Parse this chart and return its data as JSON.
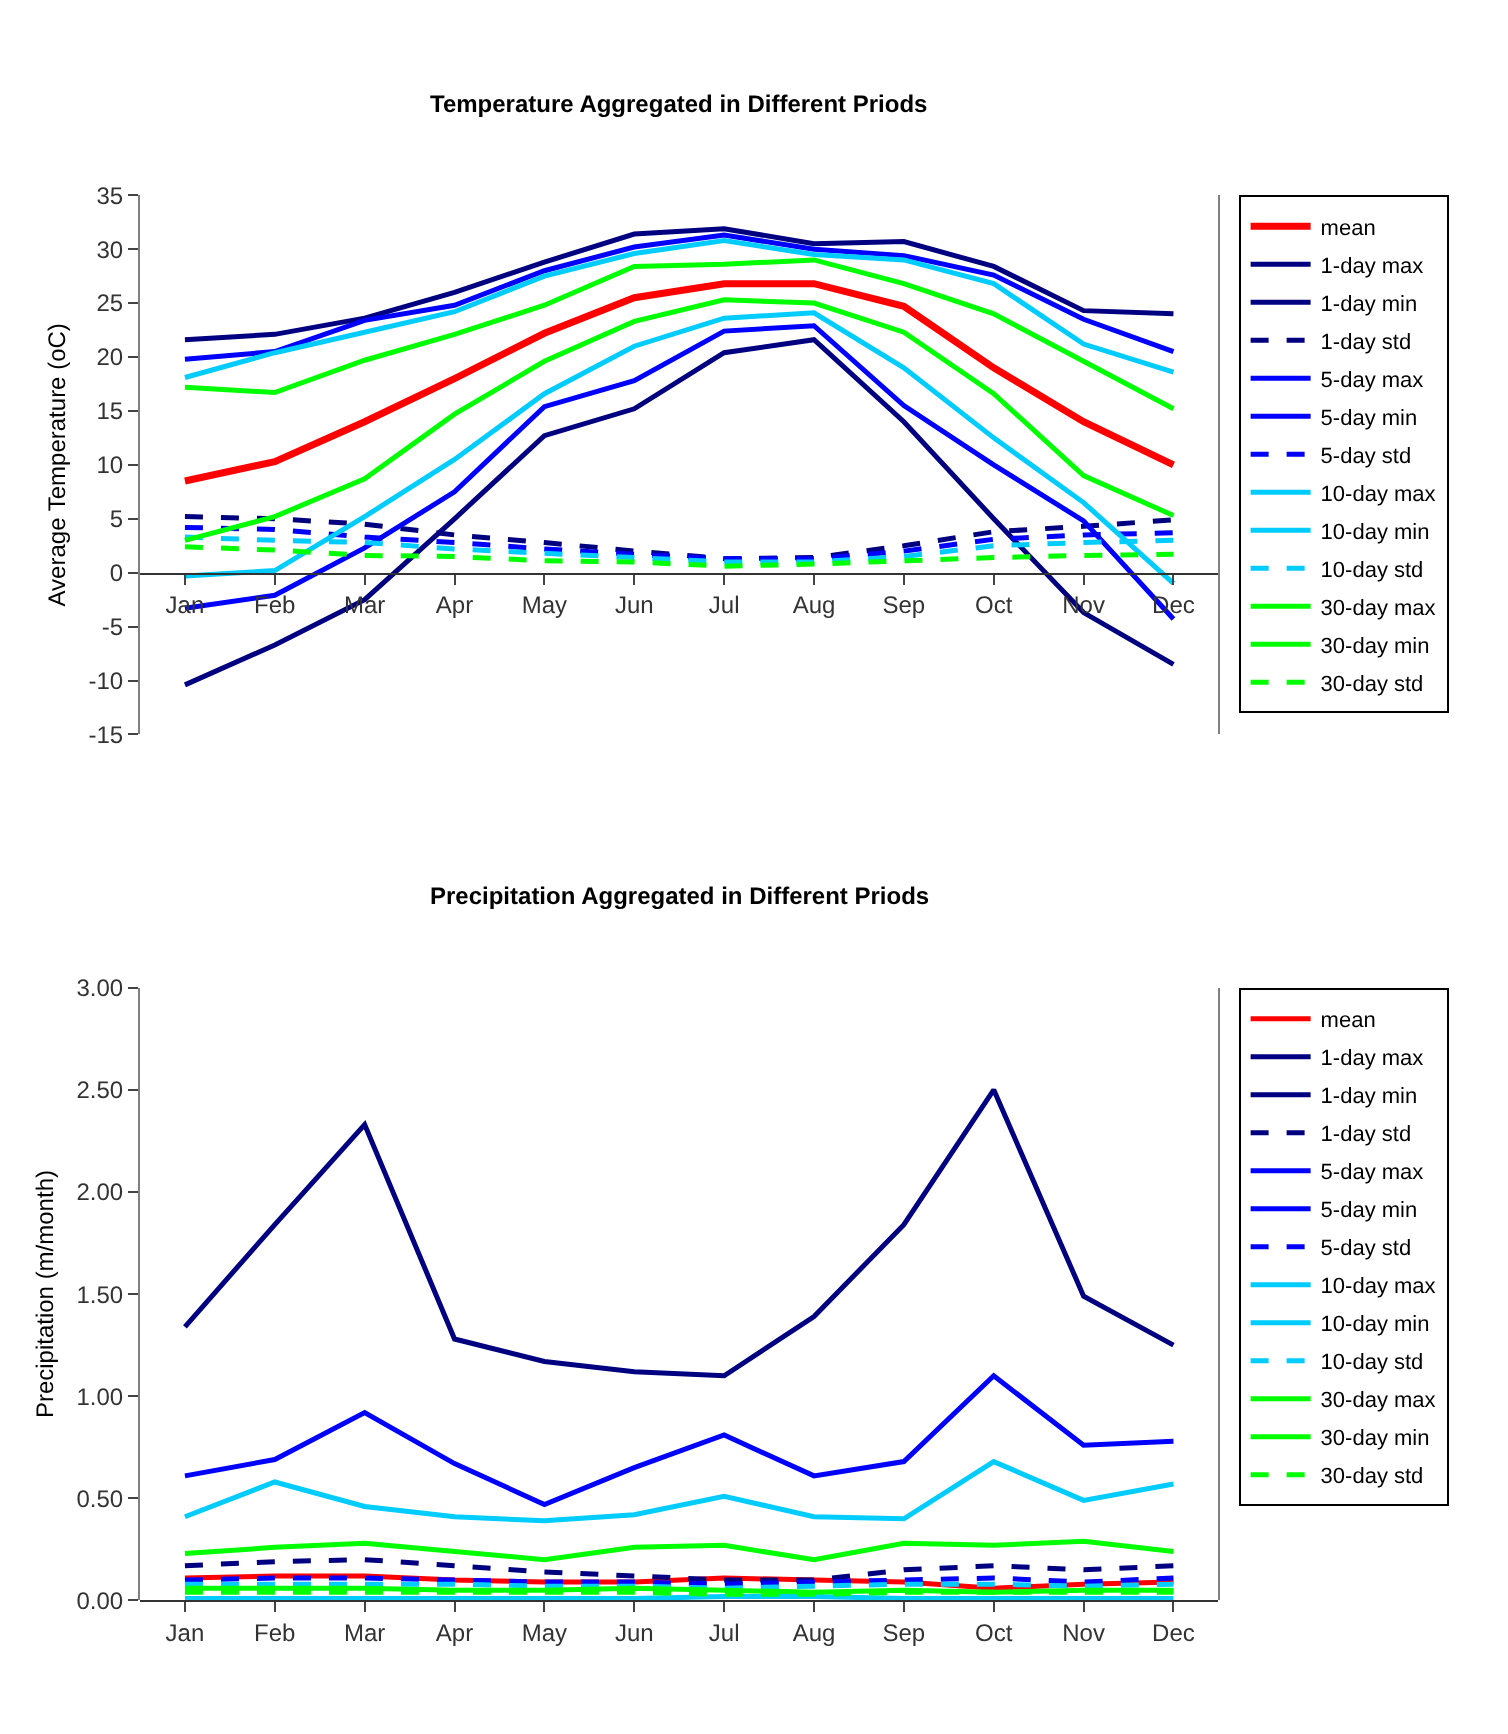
{
  "chart_data": [
    {
      "type": "line",
      "title": "Temperature Aggregated in Different Priods",
      "ylabel": "Average Temperature (oC)",
      "categories": [
        "Jan",
        "Feb",
        "Mar",
        "Apr",
        "May",
        "Jun",
        "Jul",
        "Aug",
        "Sep",
        "Oct",
        "Nov",
        "Dec"
      ],
      "ylim": [
        -15,
        35
      ],
      "yticks": [
        -15,
        -10,
        -5,
        0,
        5,
        10,
        15,
        20,
        25,
        30,
        35
      ],
      "legend": "right",
      "series": [
        {
          "name": "mean",
          "color": "#ff0000",
          "line_style": "solid",
          "values": [
            8.5,
            10.3,
            14,
            18,
            22.2,
            25.5,
            26.8,
            26.8,
            24.7,
            19,
            14,
            10
          ]
        },
        {
          "name": "1-day max",
          "color": "#000080",
          "line_style": "solid",
          "values": [
            21.6,
            22.1,
            23.6,
            26,
            28.8,
            31.4,
            31.9,
            30.5,
            30.7,
            28.4,
            24.3,
            24
          ]
        },
        {
          "name": "1-day min",
          "color": "#000080",
          "line_style": "solid",
          "values": [
            -10.4,
            -6.7,
            -2.5,
            5,
            12.7,
            15.2,
            20.4,
            21.6,
            14,
            5,
            -3.7,
            -8.5
          ]
        },
        {
          "name": "1-day std",
          "color": "#000080",
          "line_style": "dashed",
          "values": [
            5.2,
            5,
            4.5,
            3.5,
            2.8,
            2,
            1.3,
            1.4,
            2.5,
            3.8,
            4.3,
            4.9
          ]
        },
        {
          "name": "5-day max",
          "color": "#0000ff",
          "line_style": "solid",
          "values": [
            19.8,
            20.5,
            23.4,
            24.8,
            28,
            30.2,
            31.3,
            30,
            29.4,
            27.6,
            23.5,
            20.5
          ]
        },
        {
          "name": "5-day min",
          "color": "#0000ff",
          "line_style": "solid",
          "values": [
            -3.3,
            -2.1,
            2.3,
            7.5,
            15.4,
            17.8,
            22.4,
            22.9,
            15.5,
            10,
            4.8,
            -4.3
          ]
        },
        {
          "name": "5-day std",
          "color": "#0000ff",
          "line_style": "dashed",
          "values": [
            4.2,
            4,
            3.3,
            2.8,
            2.2,
            1.7,
            1.3,
            1.3,
            2,
            3.1,
            3.5,
            3.7
          ]
        },
        {
          "name": "10-day max",
          "color": "#00ccff",
          "line_style": "solid",
          "values": [
            18.1,
            20.4,
            22.3,
            24.2,
            27.5,
            29.6,
            30.8,
            29.5,
            29,
            26.8,
            21.2,
            18.6
          ]
        },
        {
          "name": "10-day min",
          "color": "#00ccff",
          "line_style": "solid",
          "values": [
            -0.3,
            0.2,
            5.2,
            10.5,
            16.6,
            21,
            23.6,
            24.1,
            19,
            12.5,
            6.5,
            -1
          ]
        },
        {
          "name": "10-day std",
          "color": "#00ccff",
          "line_style": "dashed",
          "values": [
            3.3,
            3,
            2.8,
            2.2,
            1.8,
            1.4,
            1,
            1,
            1.5,
            2.5,
            2.8,
            3
          ]
        },
        {
          "name": "30-day max",
          "color": "#00ff00",
          "line_style": "solid",
          "values": [
            17.2,
            16.7,
            19.7,
            22.1,
            24.8,
            28.4,
            28.6,
            29,
            26.8,
            24,
            19.6,
            15.2
          ]
        },
        {
          "name": "30-day min",
          "color": "#00ff00",
          "line_style": "solid",
          "values": [
            3,
            5.2,
            8.7,
            14.7,
            19.6,
            23.3,
            25.3,
            25,
            22.3,
            16.6,
            9,
            5.3
          ]
        },
        {
          "name": "30-day std",
          "color": "#00ff00",
          "line_style": "dashed",
          "values": [
            2.4,
            2.1,
            1.6,
            1.5,
            1.1,
            1,
            0.6,
            0.8,
            1.1,
            1.4,
            1.6,
            1.7
          ]
        }
      ]
    },
    {
      "type": "line",
      "title": "Precipitation Aggregated in Different Priods",
      "ylabel": "Precipitation (m/month)",
      "categories": [
        "Jan",
        "Feb",
        "Mar",
        "Apr",
        "May",
        "Jun",
        "Jul",
        "Aug",
        "Sep",
        "Oct",
        "Nov",
        "Dec"
      ],
      "ylim": [
        0,
        3
      ],
      "yticks": [
        {
          "value": 0,
          "label": "0.00"
        },
        {
          "value": 0.5,
          "label": "0.50"
        },
        {
          "value": 1,
          "label": "1.00"
        },
        {
          "value": 1.5,
          "label": "1.50"
        },
        {
          "value": 2,
          "label": "2.00"
        },
        {
          "value": 2.5,
          "label": "2.50"
        },
        {
          "value": 3,
          "label": "3.00"
        }
      ],
      "legend": "right",
      "series": [
        {
          "name": "mean",
          "color": "#ff0000",
          "line_style": "solid",
          "values": [
            0.11,
            0.12,
            0.12,
            0.1,
            0.09,
            0.09,
            0.11,
            0.1,
            0.09,
            0.06,
            0.08,
            0.09
          ]
        },
        {
          "name": "1-day max",
          "color": "#000080",
          "line_style": "solid",
          "values": [
            1.34,
            1.84,
            2.33,
            1.28,
            1.17,
            1.12,
            1.1,
            1.39,
            1.84,
            2.5,
            1.49,
            1.25
          ]
        },
        {
          "name": "1-day min",
          "color": "#000080",
          "line_style": "solid",
          "values": [
            null,
            null,
            null,
            null,
            null,
            null,
            null,
            null,
            null,
            null,
            null,
            null
          ]
        },
        {
          "name": "1-day std",
          "color": "#000080",
          "line_style": "dashed",
          "values": [
            0.17,
            0.19,
            0.2,
            0.17,
            0.14,
            0.12,
            0.1,
            0.1,
            0.15,
            0.17,
            0.15,
            0.17
          ]
        },
        {
          "name": "5-day max",
          "color": "#0000ff",
          "line_style": "solid",
          "values": [
            0.61,
            0.69,
            0.92,
            0.67,
            0.47,
            0.65,
            0.81,
            0.61,
            0.68,
            1.1,
            0.76,
            0.78
          ]
        },
        {
          "name": "5-day min",
          "color": "#0000ff",
          "line_style": "solid",
          "values": [
            null,
            null,
            null,
            null,
            null,
            null,
            null,
            null,
            null,
            null,
            null,
            null
          ]
        },
        {
          "name": "5-day std",
          "color": "#0000ff",
          "line_style": "dashed",
          "values": [
            0.1,
            0.11,
            0.11,
            0.1,
            0.09,
            0.09,
            0.08,
            0.09,
            0.1,
            0.11,
            0.09,
            0.11
          ]
        },
        {
          "name": "10-day max",
          "color": "#00ccff",
          "line_style": "solid",
          "values": [
            0.41,
            0.58,
            0.46,
            0.41,
            0.39,
            0.42,
            0.51,
            0.41,
            0.4,
            0.68,
            0.49,
            0.57
          ]
        },
        {
          "name": "10-day min",
          "color": "#00ccff",
          "line_style": "solid",
          "values": [
            0.01,
            0.01,
            0.01,
            0.01,
            0.01,
            0.01,
            0.02,
            0.02,
            0.01,
            0.01,
            0.01,
            0.01
          ]
        },
        {
          "name": "10-day std",
          "color": "#00ccff",
          "line_style": "dashed",
          "values": [
            0.08,
            0.08,
            0.08,
            0.08,
            0.07,
            0.07,
            0.06,
            0.07,
            0.08,
            0.08,
            0.07,
            0.08
          ]
        },
        {
          "name": "30-day max",
          "color": "#00ff00",
          "line_style": "solid",
          "values": [
            0.23,
            0.26,
            0.28,
            0.24,
            0.2,
            0.26,
            0.27,
            0.2,
            0.28,
            0.27,
            0.29,
            0.24
          ]
        },
        {
          "name": "30-day min",
          "color": "#00ff00",
          "line_style": "solid",
          "values": [
            0.06,
            0.06,
            0.06,
            0.05,
            0.05,
            0.06,
            0.05,
            0.04,
            0.05,
            0.04,
            0.05,
            0.05
          ]
        },
        {
          "name": "30-day std",
          "color": "#00ff00",
          "line_style": "dashed",
          "values": [
            0.04,
            0.04,
            0.04,
            0.04,
            0.04,
            0.04,
            0.03,
            0.03,
            0.04,
            0.04,
            0.04,
            0.04
          ]
        }
      ]
    }
  ]
}
